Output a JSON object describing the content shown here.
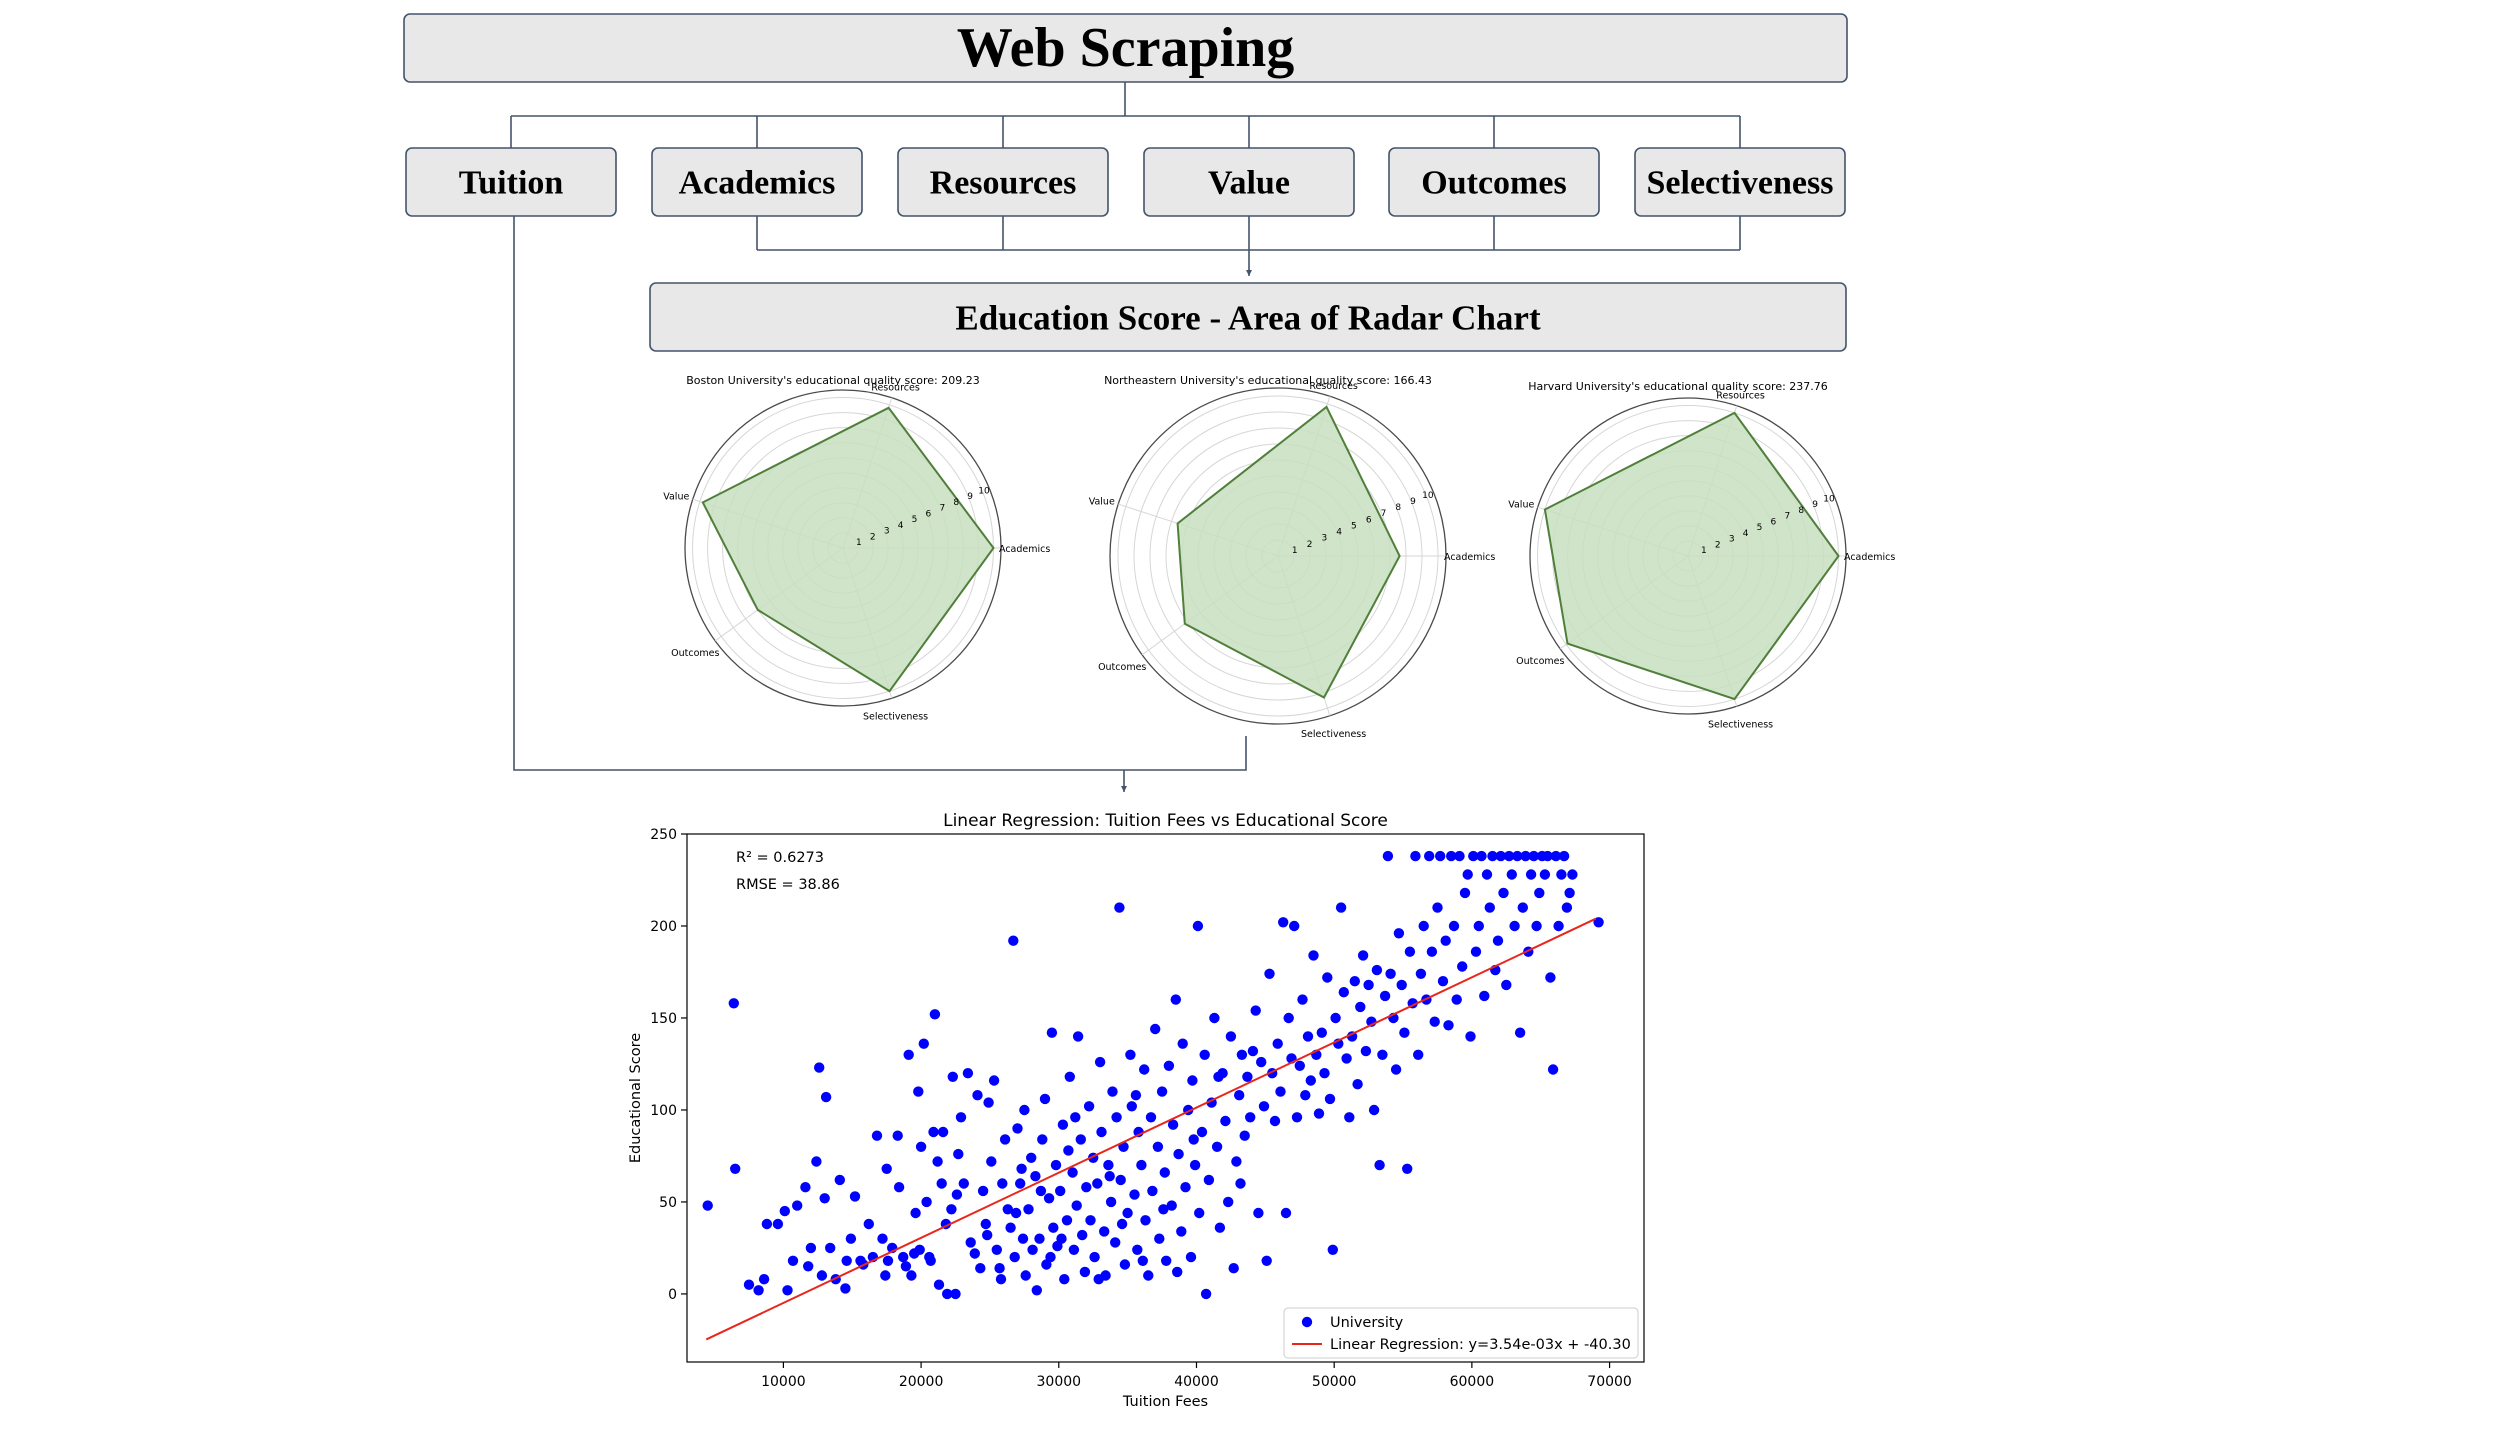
{
  "flow": {
    "title": "Web Scraping",
    "categories": [
      "Tuition",
      "Academics",
      "Resources",
      "Value",
      "Outcomes",
      "Selectiveness"
    ],
    "score_box": "Education Score - Area of Radar Chart"
  },
  "colors": {
    "box_fill": "#e8e8e8",
    "box_border": "#44546a",
    "radar_fill": "#c8dfc0",
    "radar_line": "#4f7f3a",
    "point": "#0000ff",
    "regression_line": "#e8261b"
  },
  "chart_data": [
    {
      "type": "radar",
      "title": "Boston University's educational quality score: 209.23",
      "axes": [
        "Resources",
        "Value",
        "Outcomes",
        "Selectiveness",
        "Academics"
      ],
      "values": [
        9.8,
        9.8,
        7.0,
        10.0,
        10.0
      ],
      "ticks": [
        1,
        2,
        3,
        4,
        5,
        6,
        7,
        8,
        9,
        10
      ],
      "rmax": 10.5
    },
    {
      "type": "radar",
      "title": "Northeastern University's educational quality score: 166.43",
      "axes": [
        "Resources",
        "Value",
        "Outcomes",
        "Selectiveness",
        "Academics"
      ],
      "values": [
        9.8,
        6.6,
        7.2,
        9.3,
        7.6
      ],
      "ticks": [
        1,
        2,
        3,
        4,
        5,
        6,
        7,
        8,
        9,
        10
      ],
      "rmax": 10.5
    },
    {
      "type": "radar",
      "title": "Harvard University's educational quality score: 237.76",
      "axes": [
        "Resources",
        "Value",
        "Outcomes",
        "Selectiveness",
        "Academics"
      ],
      "values": [
        10.0,
        10.0,
        9.9,
        10.0,
        10.0
      ],
      "ticks": [
        1,
        2,
        3,
        4,
        5,
        6,
        7,
        8,
        9,
        10
      ],
      "rmax": 10.5
    },
    {
      "type": "scatter",
      "title": "Linear Regression: Tuition Fees vs Educational Score",
      "xlabel": "Tuition Fees",
      "ylabel": "Educational Score",
      "xlim": [
        3000,
        72500
      ],
      "ylim": [
        -37,
        250
      ],
      "xticks": [
        10000,
        20000,
        30000,
        40000,
        50000,
        60000,
        70000
      ],
      "yticks": [
        0,
        50,
        100,
        150,
        200,
        250
      ],
      "annotations": [
        "R² = 0.6273",
        "RMSE = 38.86"
      ],
      "legend": {
        "position": "lower right",
        "entries": [
          "University",
          "Linear Regression: y=3.54e-03x + -40.30"
        ]
      },
      "regression": {
        "slope": 0.00354,
        "intercept": -40.3,
        "x_range": [
          4400,
          69000
        ]
      },
      "points": [
        [
          4500,
          48
        ],
        [
          6400,
          158
        ],
        [
          6500,
          68
        ],
        [
          7500,
          5
        ],
        [
          8200,
          2
        ],
        [
          8600,
          8
        ],
        [
          8800,
          38
        ],
        [
          9600,
          38
        ],
        [
          10100,
          45
        ],
        [
          10300,
          2
        ],
        [
          10700,
          18
        ],
        [
          11000,
          48
        ],
        [
          11600,
          58
        ],
        [
          11800,
          15
        ],
        [
          12000,
          25
        ],
        [
          12400,
          72
        ],
        [
          12600,
          123
        ],
        [
          12800,
          10
        ],
        [
          13000,
          52
        ],
        [
          13100,
          107
        ],
        [
          13400,
          25
        ],
        [
          13800,
          8
        ],
        [
          14100,
          62
        ],
        [
          14500,
          3
        ],
        [
          14600,
          18
        ],
        [
          14900,
          30
        ],
        [
          15200,
          53
        ],
        [
          15600,
          18
        ],
        [
          15800,
          16
        ],
        [
          16200,
          38
        ],
        [
          16500,
          20
        ],
        [
          16800,
          86
        ],
        [
          17200,
          30
        ],
        [
          17400,
          10
        ],
        [
          17500,
          68
        ],
        [
          17600,
          18
        ],
        [
          17900,
          25
        ],
        [
          18300,
          86
        ],
        [
          18400,
          58
        ],
        [
          18700,
          20
        ],
        [
          18900,
          15
        ],
        [
          19100,
          130
        ],
        [
          19300,
          10
        ],
        [
          19500,
          22
        ],
        [
          19600,
          44
        ],
        [
          19800,
          110
        ],
        [
          19900,
          24
        ],
        [
          20000,
          80
        ],
        [
          20200,
          136
        ],
        [
          20400,
          50
        ],
        [
          20600,
          20
        ],
        [
          20700,
          18
        ],
        [
          20900,
          88
        ],
        [
          21000,
          152
        ],
        [
          21200,
          72
        ],
        [
          21300,
          5
        ],
        [
          21500,
          60
        ],
        [
          21600,
          88
        ],
        [
          21800,
          38
        ],
        [
          21900,
          0
        ],
        [
          22200,
          46
        ],
        [
          22300,
          118
        ],
        [
          22500,
          0
        ],
        [
          22700,
          76
        ],
        [
          22900,
          96
        ],
        [
          23100,
          60
        ],
        [
          23400,
          120
        ],
        [
          23600,
          28
        ],
        [
          23900,
          22
        ],
        [
          24100,
          108
        ],
        [
          24300,
          14
        ],
        [
          24500,
          56
        ],
        [
          24700,
          38
        ],
        [
          24900,
          104
        ],
        [
          25100,
          72
        ],
        [
          25300,
          116
        ],
        [
          25500,
          24
        ],
        [
          25700,
          14
        ],
        [
          25900,
          60
        ],
        [
          26100,
          84
        ],
        [
          26300,
          46
        ],
        [
          26500,
          36
        ],
        [
          26700,
          192
        ],
        [
          26800,
          20
        ],
        [
          27000,
          90
        ],
        [
          27200,
          60
        ],
        [
          27400,
          30
        ],
        [
          27500,
          100
        ],
        [
          27600,
          10
        ],
        [
          27800,
          46
        ],
        [
          28000,
          74
        ],
        [
          28100,
          24
        ],
        [
          28300,
          64
        ],
        [
          28400,
          2
        ],
        [
          28600,
          30
        ],
        [
          28800,
          84
        ],
        [
          29000,
          106
        ],
        [
          29100,
          16
        ],
        [
          29300,
          52
        ],
        [
          29500,
          142
        ],
        [
          29600,
          36
        ],
        [
          29800,
          70
        ],
        [
          29900,
          26
        ],
        [
          30100,
          56
        ],
        [
          30300,
          92
        ],
        [
          30400,
          8
        ],
        [
          30600,
          40
        ],
        [
          30800,
          118
        ],
        [
          31000,
          66
        ],
        [
          31100,
          24
        ],
        [
          31300,
          48
        ],
        [
          31400,
          140
        ],
        [
          31600,
          84
        ],
        [
          31700,
          32
        ],
        [
          31900,
          12
        ],
        [
          32000,
          58
        ],
        [
          32200,
          102
        ],
        [
          32300,
          40
        ],
        [
          32500,
          74
        ],
        [
          32600,
          20
        ],
        [
          32800,
          60
        ],
        [
          33000,
          126
        ],
        [
          33100,
          88
        ],
        [
          33300,
          34
        ],
        [
          33400,
          10
        ],
        [
          33600,
          70
        ],
        [
          33800,
          50
        ],
        [
          33900,
          110
        ],
        [
          34100,
          28
        ],
        [
          34200,
          96
        ],
        [
          34400,
          210
        ],
        [
          34500,
          62
        ],
        [
          34700,
          80
        ],
        [
          34800,
          16
        ],
        [
          35000,
          44
        ],
        [
          35200,
          130
        ],
        [
          35300,
          102
        ],
        [
          35500,
          54
        ],
        [
          35700,
          24
        ],
        [
          35800,
          88
        ],
        [
          36000,
          70
        ],
        [
          36200,
          122
        ],
        [
          36300,
          40
        ],
        [
          36500,
          10
        ],
        [
          36700,
          96
        ],
        [
          36800,
          56
        ],
        [
          37000,
          144
        ],
        [
          37200,
          80
        ],
        [
          37300,
          30
        ],
        [
          37500,
          110
        ],
        [
          37700,
          66
        ],
        [
          37800,
          18
        ],
        [
          38000,
          124
        ],
        [
          38200,
          48
        ],
        [
          38300,
          92
        ],
        [
          38500,
          160
        ],
        [
          38700,
          76
        ],
        [
          38900,
          34
        ],
        [
          39000,
          136
        ],
        [
          39200,
          58
        ],
        [
          39400,
          100
        ],
        [
          39600,
          20
        ],
        [
          39700,
          116
        ],
        [
          39900,
          70
        ],
        [
          40100,
          200
        ],
        [
          40200,
          44
        ],
        [
          40400,
          88
        ],
        [
          40600,
          130
        ],
        [
          40700,
          0
        ],
        [
          40900,
          62
        ],
        [
          41100,
          104
        ],
        [
          41300,
          150
        ],
        [
          41500,
          80
        ],
        [
          41700,
          36
        ],
        [
          41900,
          120
        ],
        [
          42100,
          94
        ],
        [
          42300,
          50
        ],
        [
          42500,
          140
        ],
        [
          42700,
          14
        ],
        [
          42900,
          72
        ],
        [
          43100,
          108
        ],
        [
          43300,
          130
        ],
        [
          43500,
          86
        ],
        [
          43700,
          118
        ],
        [
          43900,
          96
        ],
        [
          44100,
          132
        ],
        [
          44300,
          154
        ],
        [
          44500,
          44
        ],
        [
          44700,
          126
        ],
        [
          44900,
          102
        ],
        [
          45100,
          18
        ],
        [
          45300,
          174
        ],
        [
          45500,
          120
        ],
        [
          45700,
          94
        ],
        [
          45900,
          136
        ],
        [
          46100,
          110
        ],
        [
          46300,
          202
        ],
        [
          46500,
          44
        ],
        [
          46700,
          150
        ],
        [
          46900,
          128
        ],
        [
          47100,
          200
        ],
        [
          47300,
          96
        ],
        [
          47500,
          124
        ],
        [
          47700,
          160
        ],
        [
          47900,
          108
        ],
        [
          48100,
          140
        ],
        [
          48300,
          116
        ],
        [
          48500,
          184
        ],
        [
          48700,
          130
        ],
        [
          48900,
          98
        ],
        [
          49100,
          142
        ],
        [
          49300,
          120
        ],
        [
          49500,
          172
        ],
        [
          49700,
          106
        ],
        [
          49900,
          24
        ],
        [
          50100,
          150
        ],
        [
          50300,
          136
        ],
        [
          50500,
          210
        ],
        [
          50700,
          164
        ],
        [
          50900,
          128
        ],
        [
          51100,
          96
        ],
        [
          51300,
          140
        ],
        [
          51500,
          170
        ],
        [
          51700,
          114
        ],
        [
          51900,
          156
        ],
        [
          52100,
          184
        ],
        [
          52300,
          132
        ],
        [
          52500,
          168
        ],
        [
          52700,
          148
        ],
        [
          52900,
          100
        ],
        [
          53100,
          176
        ],
        [
          53300,
          70
        ],
        [
          53500,
          130
        ],
        [
          53700,
          162
        ],
        [
          53900,
          238
        ],
        [
          54100,
          174
        ],
        [
          54300,
          150
        ],
        [
          54500,
          122
        ],
        [
          54700,
          196
        ],
        [
          54900,
          168
        ],
        [
          55100,
          142
        ],
        [
          55300,
          68
        ],
        [
          55500,
          186
        ],
        [
          55700,
          158
        ],
        [
          55900,
          238
        ],
        [
          56100,
          130
        ],
        [
          56300,
          174
        ],
        [
          56500,
          200
        ],
        [
          56700,
          160
        ],
        [
          56900,
          238
        ],
        [
          57100,
          186
        ],
        [
          57300,
          148
        ],
        [
          57500,
          210
        ],
        [
          57700,
          238
        ],
        [
          57900,
          170
        ],
        [
          58100,
          192
        ],
        [
          58300,
          146
        ],
        [
          58500,
          238
        ],
        [
          58700,
          200
        ],
        [
          58900,
          160
        ],
        [
          59100,
          238
        ],
        [
          59300,
          178
        ],
        [
          59500,
          218
        ],
        [
          59700,
          228
        ],
        [
          59900,
          140
        ],
        [
          60100,
          238
        ],
        [
          60300,
          186
        ],
        [
          60500,
          200
        ],
        [
          60700,
          238
        ],
        [
          60900,
          162
        ],
        [
          61100,
          228
        ],
        [
          61300,
          210
        ],
        [
          61500,
          238
        ],
        [
          61700,
          176
        ],
        [
          61900,
          192
        ],
        [
          62100,
          238
        ],
        [
          62300,
          218
        ],
        [
          62500,
          168
        ],
        [
          62700,
          238
        ],
        [
          62900,
          228
        ],
        [
          63100,
          200
        ],
        [
          63300,
          238
        ],
        [
          63500,
          142
        ],
        [
          63700,
          210
        ],
        [
          63900,
          238
        ],
        [
          64100,
          186
        ],
        [
          64300,
          228
        ],
        [
          64500,
          238
        ],
        [
          64700,
          200
        ],
        [
          64900,
          218
        ],
        [
          65100,
          238
        ],
        [
          65300,
          228
        ],
        [
          65500,
          238
        ],
        [
          65700,
          172
        ],
        [
          65900,
          122
        ],
        [
          66100,
          238
        ],
        [
          66300,
          200
        ],
        [
          66500,
          228
        ],
        [
          66700,
          238
        ],
        [
          66900,
          210
        ],
        [
          67100,
          218
        ],
        [
          67300,
          228
        ],
        [
          69200,
          202
        ],
        [
          24800,
          32
        ],
        [
          26900,
          44
        ],
        [
          29400,
          20
        ],
        [
          30700,
          78
        ],
        [
          32900,
          8
        ],
        [
          34600,
          38
        ],
        [
          36100,
          18
        ],
        [
          38600,
          12
        ],
        [
          28700,
          56
        ],
        [
          31200,
          96
        ],
        [
          33700,
          64
        ],
        [
          35600,
          108
        ],
        [
          37600,
          46
        ],
        [
          39800,
          84
        ],
        [
          27300,
          68
        ],
        [
          30200,
          30
        ],
        [
          25800,
          8
        ],
        [
          22600,
          54
        ],
        [
          41600,
          118
        ],
        [
          43200,
          60
        ]
      ]
    }
  ]
}
